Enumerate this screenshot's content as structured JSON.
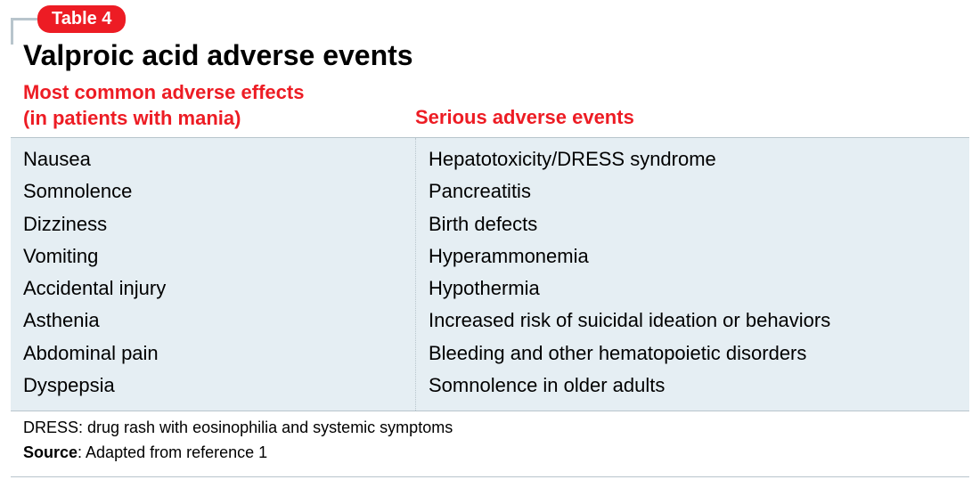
{
  "colors": {
    "badge_bg": "#ed1c24",
    "badge_text": "#ffffff",
    "accent_red": "#ed1c24",
    "title_text": "#000000",
    "table_bg": "#e5eef3",
    "border_gray": "#b8c5cc",
    "bracket": "#b8c5cc",
    "body_text": "#000000",
    "footer_text": "#000000"
  },
  "badge": {
    "label": "Table 4"
  },
  "title": "Valproic acid adverse events",
  "headers": {
    "left_line1": "Most common adverse effects",
    "left_line2": "(in patients with mania)",
    "right": "Serious adverse events"
  },
  "columns": {
    "left": [
      "Nausea",
      "Somnolence",
      "Dizziness",
      "Vomiting",
      "Accidental injury",
      "Asthenia",
      "Abdominal pain",
      "Dyspepsia"
    ],
    "right": [
      "Hepatotoxicity/DRESS syndrome",
      "Pancreatitis",
      "Birth defects",
      "Hyperammonemia",
      "Hypothermia",
      "Increased risk of suicidal ideation or behaviors",
      "Bleeding and other hematopoietic disorders",
      "Somnolence in older adults"
    ]
  },
  "footer": {
    "abbrev": "DRESS: drug rash with eosinophilia and systemic symptoms",
    "source_label": "Source",
    "source_text": ": Adapted from reference 1"
  },
  "typography": {
    "title_fontsize": 32,
    "header_fontsize": 22,
    "body_fontsize": 22,
    "footer_fontsize": 18,
    "badge_fontsize": 20
  }
}
